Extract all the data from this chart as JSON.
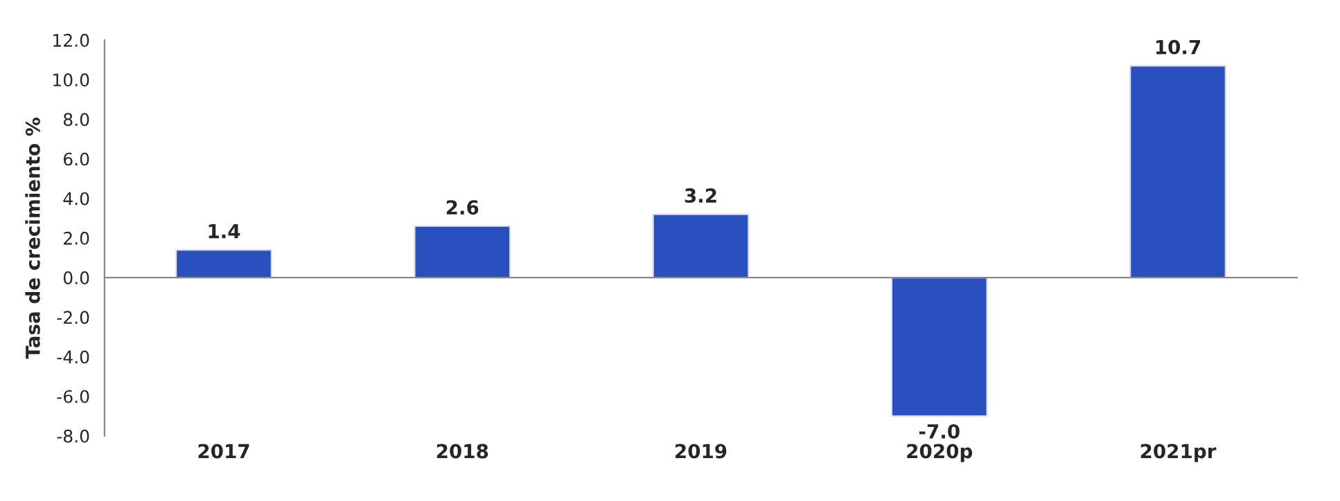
{
  "chart_data": {
    "type": "bar",
    "ylabel": "Tasa de crecimiento %",
    "categories": [
      "2017",
      "2018",
      "2019",
      "2020p",
      "2021pr"
    ],
    "values": [
      1.4,
      2.6,
      3.2,
      -7.0,
      10.7
    ],
    "value_labels": [
      "1.4",
      "2.6",
      "3.2",
      "-7.0",
      "10.7"
    ],
    "color": "#2a4fbf",
    "ylim": [
      -8,
      12
    ],
    "yticks": [
      {
        "value": -8,
        "label": "-8.0"
      },
      {
        "value": -6,
        "label": "-6.0"
      },
      {
        "value": -4,
        "label": "-4.0"
      },
      {
        "value": -2,
        "label": "-2.0"
      },
      {
        "value": 0,
        "label": "0.0"
      },
      {
        "value": 2,
        "label": "2.0"
      },
      {
        "value": 4,
        "label": "4.0"
      },
      {
        "value": 6,
        "label": "6.0"
      },
      {
        "value": 8,
        "label": "8.0"
      },
      {
        "value": 10,
        "label": "10.0"
      },
      {
        "value": 12,
        "label": "12.0"
      }
    ],
    "legend": false
  }
}
